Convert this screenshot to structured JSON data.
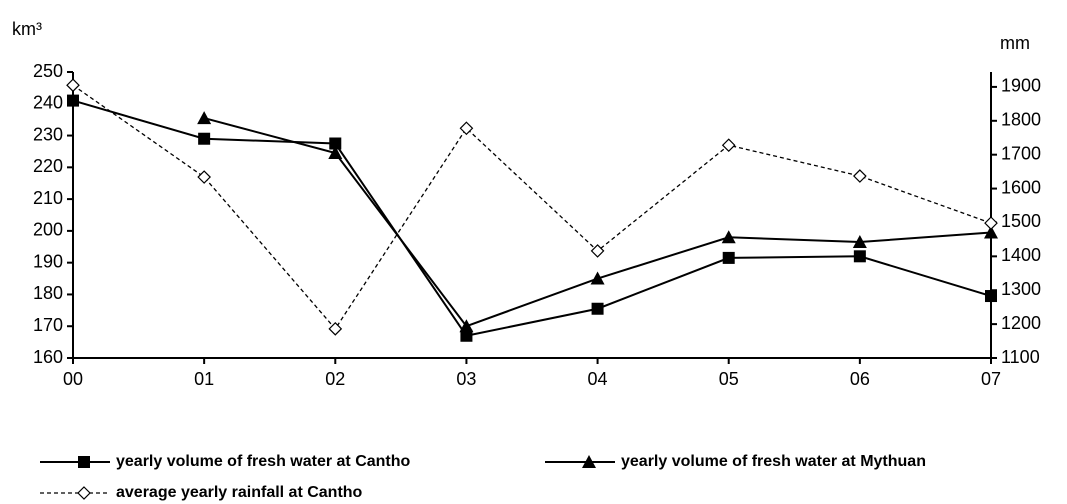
{
  "chart_data": {
    "type": "line",
    "y_label": "km³",
    "y2_label": "mm",
    "categories": [
      "00",
      "01",
      "02",
      "03",
      "04",
      "05",
      "06",
      "07"
    ],
    "series": [
      {
        "name": "yearly volume of fresh water at Cantho",
        "color": "#000000",
        "marker": "square",
        "linestyle": "solid",
        "values": [
          241,
          229,
          227.5,
          167,
          175.5,
          191.5,
          192,
          179.5
        ]
      },
      {
        "name": "yearly volume of fresh water at Mythuan",
        "color": "#000000",
        "marker": "triangle",
        "linestyle": "solid",
        "values": [
          null,
          235.5,
          224.5,
          170,
          185,
          198,
          196.5,
          199.5
        ]
      },
      {
        "name": "average yearly rainfall at Cantho",
        "color": "#000000",
        "marker": "diamond",
        "linestyle": "dashed",
        "axis": "y2",
        "values": [
          1905,
          1634,
          1186,
          1778,
          1416,
          1728,
          1637,
          1498
        ]
      }
    ],
    "ylim": [
      160,
      250
    ],
    "yticks": [
      160,
      170,
      180,
      190,
      200,
      210,
      220,
      230,
      240,
      250
    ],
    "y2lim": [
      1100,
      1944
    ],
    "y2ticks": [
      1100,
      1200,
      1300,
      1400,
      1500,
      1600,
      1700,
      1800,
      1900
    ],
    "grid": false
  }
}
